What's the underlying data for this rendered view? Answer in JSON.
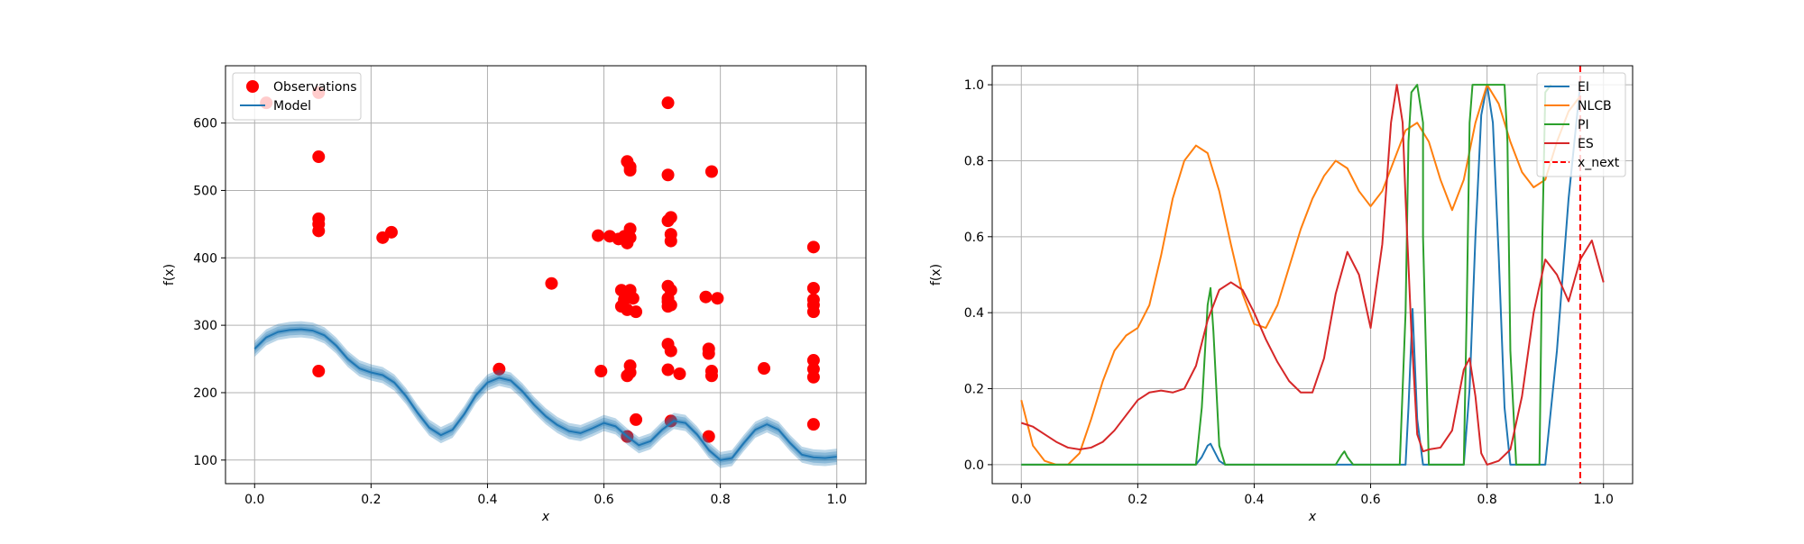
{
  "chart_data": [
    {
      "type": "scatter",
      "xlabel": "x",
      "ylabel": "f(x)",
      "xlim": [
        -0.05,
        1.05
      ],
      "ylim": [
        65,
        685
      ],
      "xticks": [
        0.0,
        0.2,
        0.4,
        0.6,
        0.8,
        1.0
      ],
      "xtick_labels": [
        "0.0",
        "0.2",
        "0.4",
        "0.6",
        "0.8",
        "1.0"
      ],
      "yticks": [
        100,
        200,
        300,
        400,
        500,
        600
      ],
      "ytick_labels": [
        "100",
        "200",
        "300",
        "400",
        "500",
        "600"
      ],
      "grid": true,
      "legend_position": "top-left",
      "series": [
        {
          "name": "Observations",
          "kind": "scatter",
          "color": "#ff0000",
          "points": [
            [
              0.02,
              630
            ],
            [
              0.11,
              645
            ],
            [
              0.11,
              550
            ],
            [
              0.11,
              458
            ],
            [
              0.11,
              450
            ],
            [
              0.11,
              440
            ],
            [
              0.11,
              232
            ],
            [
              0.22,
              430
            ],
            [
              0.235,
              438
            ],
            [
              0.42,
              235
            ],
            [
              0.51,
              362
            ],
            [
              0.59,
              433
            ],
            [
              0.595,
              232
            ],
            [
              0.61,
              432
            ],
            [
              0.625,
              428
            ],
            [
              0.63,
              328
            ],
            [
              0.63,
              352
            ],
            [
              0.635,
              432
            ],
            [
              0.635,
              338
            ],
            [
              0.64,
              543
            ],
            [
              0.64,
              422
            ],
            [
              0.64,
              323
            ],
            [
              0.64,
              225
            ],
            [
              0.64,
              135
            ],
            [
              0.645,
              535
            ],
            [
              0.645,
              530
            ],
            [
              0.645,
              443
            ],
            [
              0.645,
              430
            ],
            [
              0.645,
              352
            ],
            [
              0.645,
              240
            ],
            [
              0.645,
              230
            ],
            [
              0.65,
              340
            ],
            [
              0.655,
              320
            ],
            [
              0.655,
              160
            ],
            [
              0.71,
              630
            ],
            [
              0.71,
              523
            ],
            [
              0.71,
              455
            ],
            [
              0.71,
              358
            ],
            [
              0.71,
              340
            ],
            [
              0.71,
              335
            ],
            [
              0.71,
              328
            ],
            [
              0.71,
              272
            ],
            [
              0.71,
              234
            ],
            [
              0.715,
              460
            ],
            [
              0.715,
              435
            ],
            [
              0.715,
              425
            ],
            [
              0.715,
              352
            ],
            [
              0.715,
              330
            ],
            [
              0.715,
              262
            ],
            [
              0.715,
              158
            ],
            [
              0.73,
              228
            ],
            [
              0.775,
              342
            ],
            [
              0.78,
              135
            ],
            [
              0.78,
              265
            ],
            [
              0.78,
              258
            ],
            [
              0.785,
              528
            ],
            [
              0.785,
              232
            ],
            [
              0.785,
              225
            ],
            [
              0.795,
              340
            ],
            [
              0.875,
              236
            ],
            [
              0.96,
              416
            ],
            [
              0.96,
              355
            ],
            [
              0.96,
              338
            ],
            [
              0.96,
              330
            ],
            [
              0.96,
              320
            ],
            [
              0.96,
              248
            ],
            [
              0.96,
              235
            ],
            [
              0.96,
              223
            ],
            [
              0.96,
              153
            ]
          ]
        },
        {
          "name": "Model",
          "kind": "line",
          "color": "#1f77b4",
          "band_halfwidth": 12,
          "x": [
            0.0,
            0.02,
            0.04,
            0.06,
            0.08,
            0.1,
            0.12,
            0.14,
            0.16,
            0.18,
            0.2,
            0.22,
            0.24,
            0.26,
            0.28,
            0.3,
            0.32,
            0.34,
            0.36,
            0.38,
            0.4,
            0.42,
            0.44,
            0.46,
            0.48,
            0.5,
            0.52,
            0.54,
            0.56,
            0.58,
            0.6,
            0.62,
            0.64,
            0.66,
            0.68,
            0.7,
            0.72,
            0.74,
            0.76,
            0.78,
            0.8,
            0.82,
            0.84,
            0.86,
            0.88,
            0.9,
            0.92,
            0.94,
            0.96,
            0.98,
            1.0
          ],
          "y": [
            265,
            282,
            290,
            293,
            294,
            292,
            285,
            270,
            250,
            236,
            230,
            226,
            215,
            195,
            170,
            148,
            137,
            145,
            168,
            196,
            215,
            222,
            218,
            202,
            182,
            165,
            152,
            143,
            140,
            147,
            155,
            150,
            135,
            122,
            128,
            145,
            158,
            155,
            138,
            115,
            100,
            103,
            125,
            145,
            153,
            145,
            125,
            108,
            104,
            103,
            105
          ]
        }
      ]
    },
    {
      "type": "line",
      "xlabel": "x",
      "ylabel": "f(x)",
      "xlim": [
        -0.05,
        1.05
      ],
      "ylim": [
        -0.05,
        1.05
      ],
      "xticks": [
        0.0,
        0.2,
        0.4,
        0.6,
        0.8,
        1.0
      ],
      "xtick_labels": [
        "0.0",
        "0.2",
        "0.4",
        "0.6",
        "0.8",
        "1.0"
      ],
      "yticks": [
        0.0,
        0.2,
        0.4,
        0.6,
        0.8,
        1.0
      ],
      "ytick_labels": [
        "0.0",
        "0.2",
        "0.4",
        "0.6",
        "0.8",
        "1.0"
      ],
      "grid": true,
      "legend_position": "top-right",
      "series": [
        {
          "name": "EI",
          "color": "#1f77b4",
          "x": [
            0.0,
            0.3,
            0.31,
            0.32,
            0.325,
            0.33,
            0.34,
            0.35,
            0.66,
            0.665,
            0.672,
            0.68,
            0.69,
            0.76,
            0.77,
            0.78,
            0.79,
            0.8,
            0.81,
            0.82,
            0.83,
            0.84,
            0.9,
            0.92,
            0.94,
            0.96
          ],
          "y": [
            0.0,
            0.0,
            0.02,
            0.05,
            0.055,
            0.04,
            0.01,
            0.0,
            0.0,
            0.15,
            0.41,
            0.12,
            0.0,
            0.0,
            0.2,
            0.6,
            0.92,
            1.0,
            0.9,
            0.55,
            0.15,
            0.0,
            0.0,
            0.3,
            0.7,
            1.0
          ]
        },
        {
          "name": "NLCB",
          "color": "#ff7f0e",
          "x": [
            0.0,
            0.02,
            0.04,
            0.06,
            0.08,
            0.1,
            0.12,
            0.14,
            0.16,
            0.18,
            0.2,
            0.22,
            0.24,
            0.26,
            0.28,
            0.3,
            0.32,
            0.34,
            0.36,
            0.38,
            0.4,
            0.42,
            0.44,
            0.46,
            0.48,
            0.5,
            0.52,
            0.54,
            0.56,
            0.58,
            0.6,
            0.62,
            0.64,
            0.66,
            0.68,
            0.7,
            0.72,
            0.74,
            0.76,
            0.78,
            0.8,
            0.82,
            0.84,
            0.86,
            0.88,
            0.9,
            0.92,
            0.94,
            0.96
          ],
          "y": [
            0.17,
            0.05,
            0.01,
            0.0,
            0.0,
            0.03,
            0.12,
            0.22,
            0.3,
            0.34,
            0.36,
            0.42,
            0.55,
            0.7,
            0.8,
            0.84,
            0.82,
            0.72,
            0.58,
            0.45,
            0.37,
            0.36,
            0.42,
            0.52,
            0.62,
            0.7,
            0.76,
            0.8,
            0.78,
            0.72,
            0.68,
            0.72,
            0.8,
            0.88,
            0.9,
            0.85,
            0.75,
            0.67,
            0.75,
            0.9,
            1.0,
            0.95,
            0.85,
            0.77,
            0.73,
            0.75,
            0.85,
            0.93,
            0.97
          ]
        },
        {
          "name": "PI",
          "color": "#2ca02c",
          "x": [
            0.0,
            0.3,
            0.31,
            0.32,
            0.325,
            0.33,
            0.34,
            0.35,
            0.54,
            0.55,
            0.555,
            0.56,
            0.57,
            0.65,
            0.66,
            0.665,
            0.67,
            0.68,
            0.68,
            0.69,
            0.69,
            0.7,
            0.76,
            0.765,
            0.77,
            0.775,
            0.78,
            0.83,
            0.835,
            0.84,
            0.85,
            0.89,
            0.895,
            0.9,
            0.91
          ],
          "y": [
            0.0,
            0.0,
            0.15,
            0.42,
            0.465,
            0.35,
            0.05,
            0.0,
            0.0,
            0.025,
            0.035,
            0.02,
            0.0,
            0.0,
            0.4,
            0.85,
            0.98,
            1.0,
            1.0,
            0.9,
            0.6,
            0.0,
            0.0,
            0.4,
            0.9,
            1.0,
            1.0,
            1.0,
            0.85,
            0.3,
            0.0,
            0.0,
            0.6,
            0.98,
            1.0
          ]
        },
        {
          "name": "ES",
          "color": "#d62728",
          "x": [
            0.0,
            0.02,
            0.04,
            0.06,
            0.08,
            0.1,
            0.12,
            0.14,
            0.16,
            0.18,
            0.2,
            0.22,
            0.24,
            0.26,
            0.28,
            0.3,
            0.32,
            0.34,
            0.36,
            0.38,
            0.4,
            0.42,
            0.44,
            0.46,
            0.48,
            0.5,
            0.52,
            0.54,
            0.56,
            0.58,
            0.6,
            0.62,
            0.635,
            0.645,
            0.655,
            0.66,
            0.67,
            0.68,
            0.69,
            0.7,
            0.72,
            0.74,
            0.76,
            0.77,
            0.78,
            0.79,
            0.8,
            0.82,
            0.84,
            0.86,
            0.88,
            0.9,
            0.92,
            0.94,
            0.96,
            0.98,
            1.0
          ],
          "y": [
            0.11,
            0.1,
            0.08,
            0.06,
            0.045,
            0.04,
            0.045,
            0.06,
            0.09,
            0.13,
            0.17,
            0.19,
            0.195,
            0.19,
            0.2,
            0.26,
            0.38,
            0.46,
            0.48,
            0.46,
            0.4,
            0.33,
            0.27,
            0.22,
            0.19,
            0.19,
            0.28,
            0.45,
            0.56,
            0.5,
            0.36,
            0.58,
            0.9,
            1.0,
            0.9,
            0.7,
            0.35,
            0.08,
            0.035,
            0.04,
            0.045,
            0.09,
            0.25,
            0.28,
            0.18,
            0.03,
            0.0,
            0.01,
            0.04,
            0.18,
            0.4,
            0.54,
            0.5,
            0.43,
            0.54,
            0.59,
            0.48
          ]
        },
        {
          "name": "x_next",
          "kind": "vline",
          "color": "#ff0000",
          "style": "dashed",
          "x_value": 0.96
        }
      ]
    }
  ]
}
